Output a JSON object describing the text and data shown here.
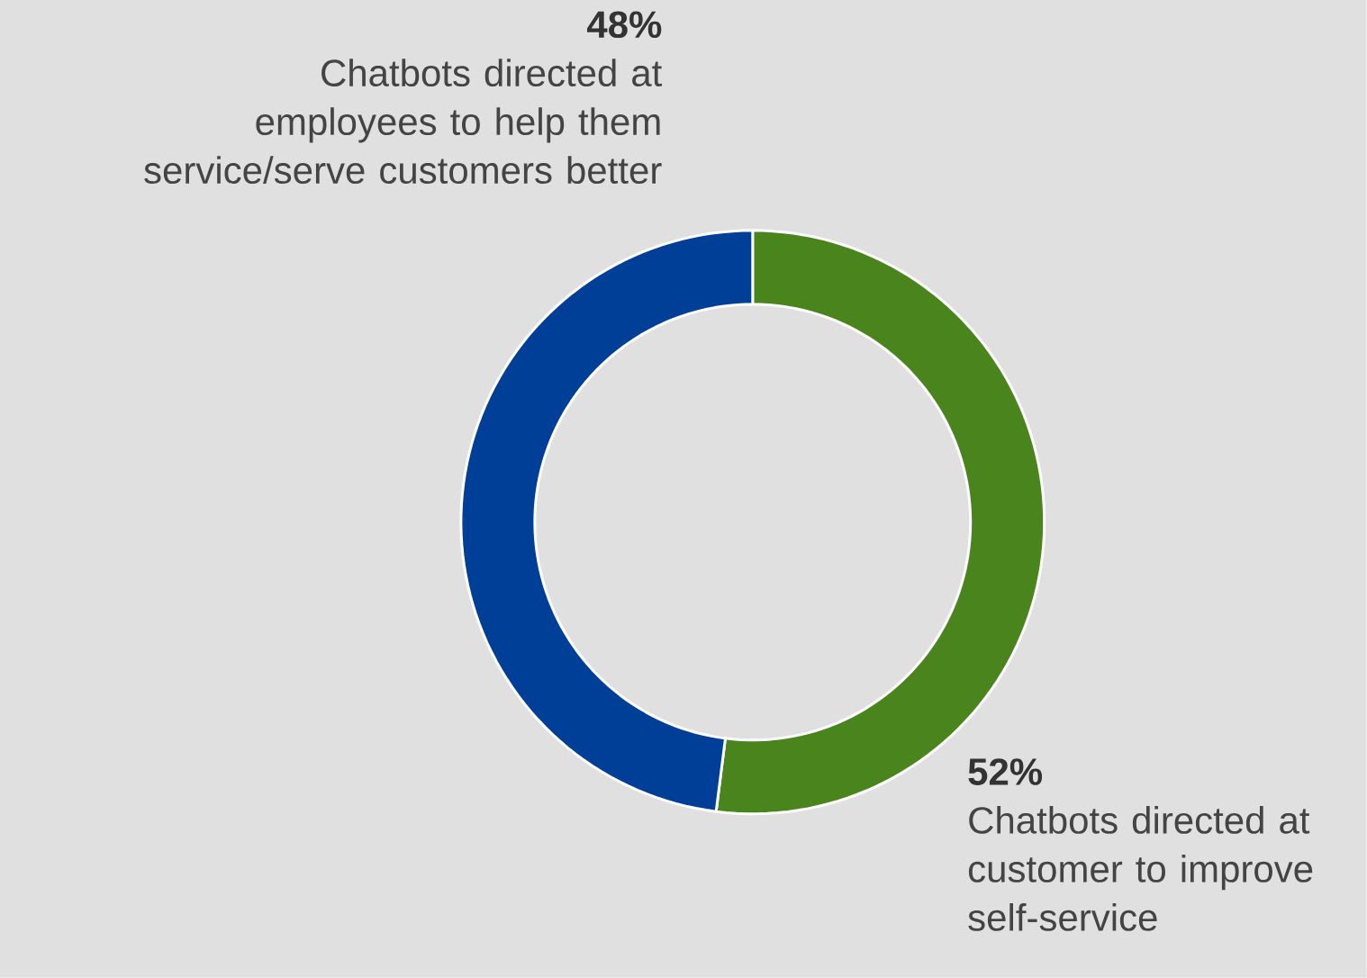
{
  "chart_data": {
    "type": "donut",
    "categories": [
      "Chatbots directed at customer to improve self-service",
      "Chatbots directed at employees to help them service/serve customers better"
    ],
    "values": [
      52,
      48
    ],
    "colors": [
      "#4a841c",
      "#003f98"
    ],
    "value_labels": [
      "52%",
      "48%"
    ]
  }
}
